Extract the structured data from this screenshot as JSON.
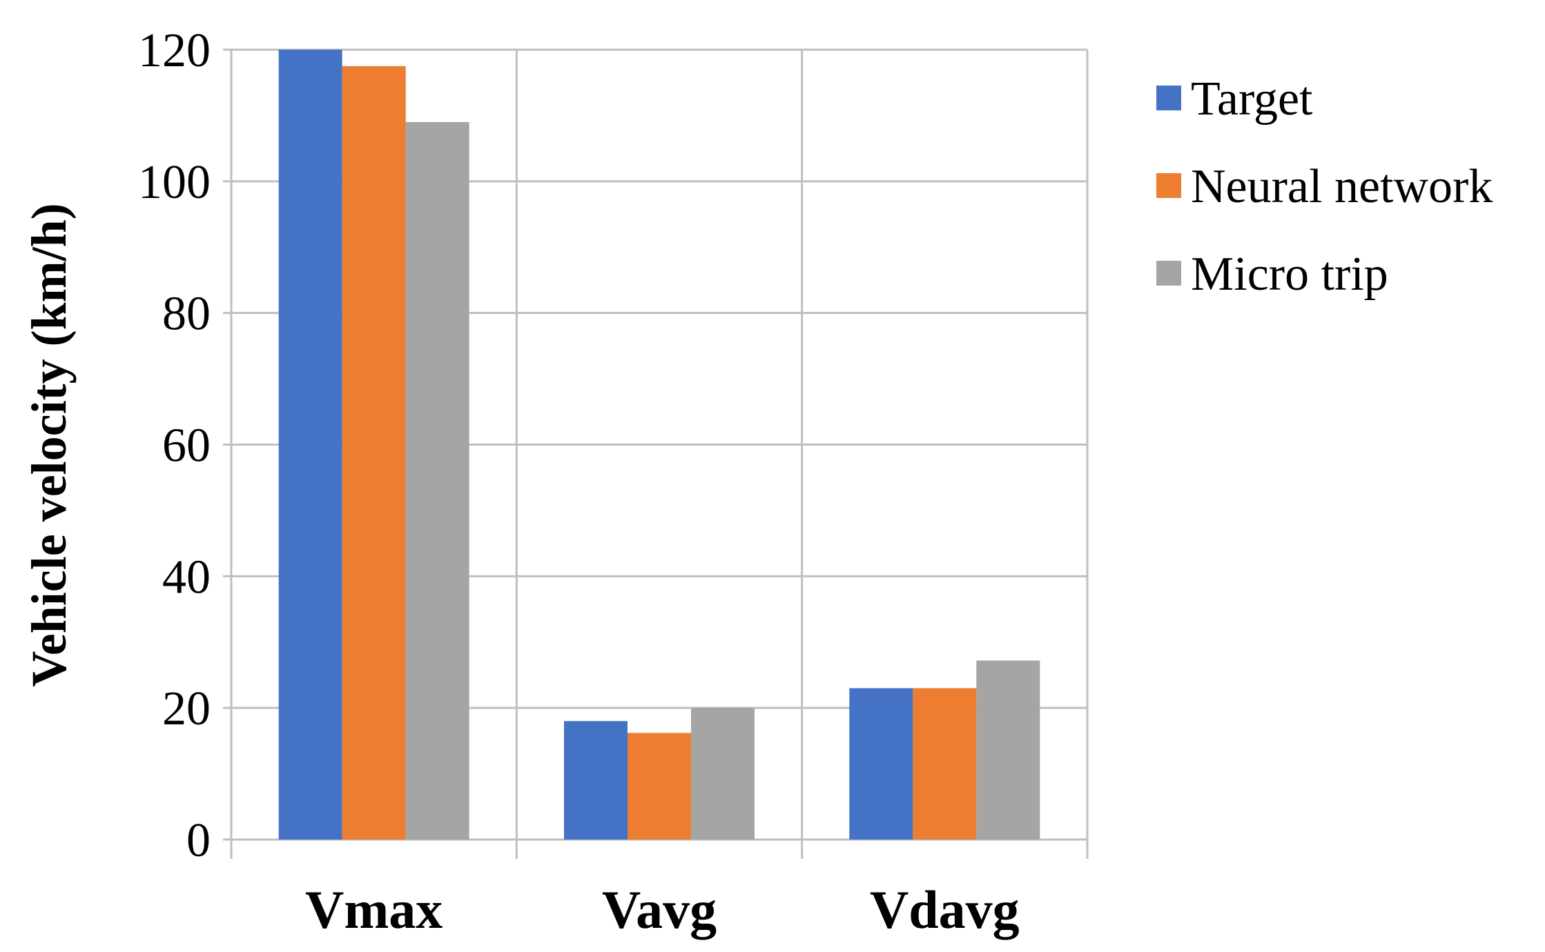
{
  "chart_data": {
    "type": "bar",
    "title": "",
    "xlabel": "",
    "ylabel": "Vehicle velocity (km/h)",
    "categories": [
      "Vmax",
      "Vavg",
      "Vdavg"
    ],
    "series": [
      {
        "name": "Target",
        "color": "#4472C4",
        "values": [
          120,
          18,
          23
        ]
      },
      {
        "name": "Neural network",
        "color": "#ED7D31",
        "values": [
          117.5,
          16.2,
          23
        ]
      },
      {
        "name": "Micro trip",
        "color": "#A5A5A5",
        "values": [
          109,
          20,
          27.2
        ]
      }
    ],
    "ylim": [
      0,
      120
    ],
    "yticks": [
      0,
      20,
      40,
      60,
      80,
      100,
      120
    ],
    "grid": true,
    "legend_position": "right"
  }
}
